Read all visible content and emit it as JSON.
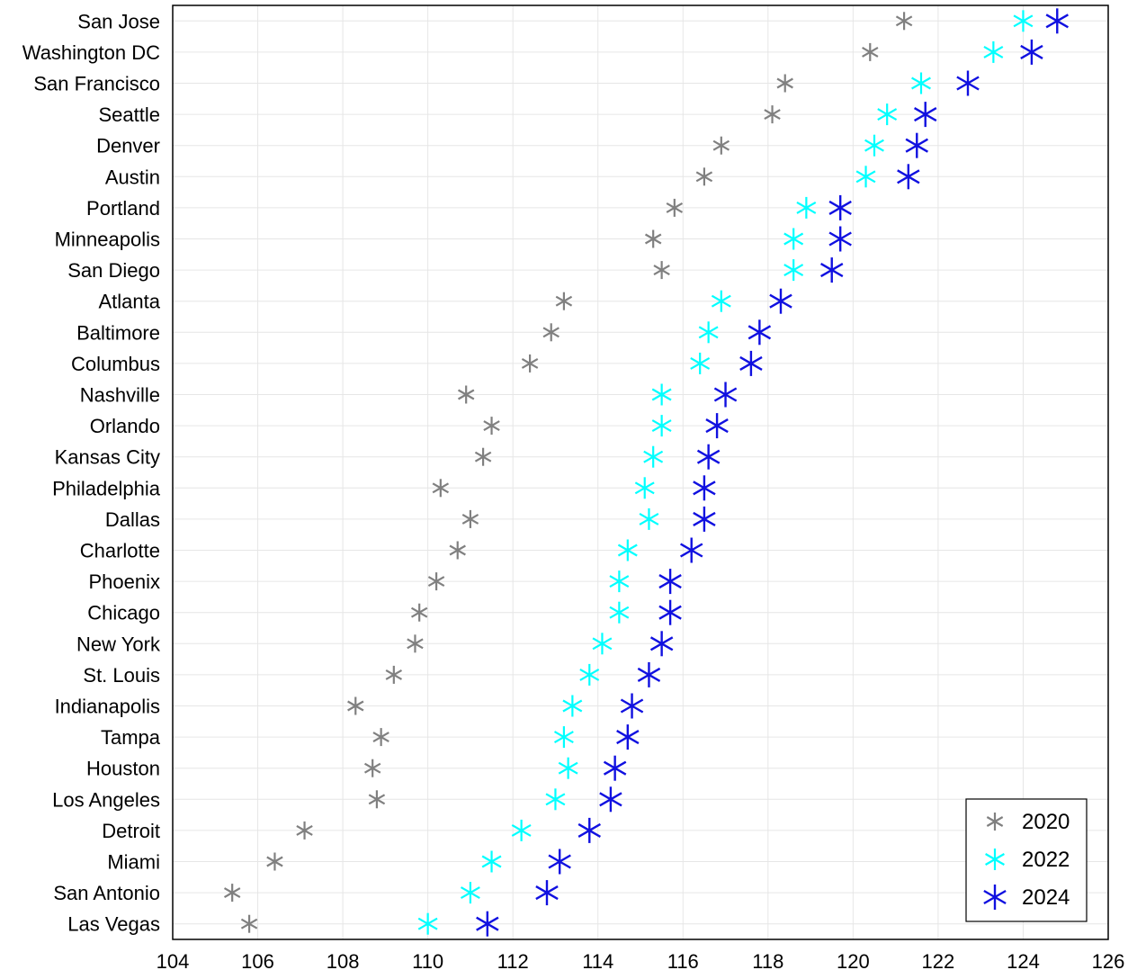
{
  "chart_data": {
    "type": "scatter",
    "title": "",
    "xlabel": "",
    "ylabel": "",
    "xlim": [
      104,
      126
    ],
    "xticks": [
      104,
      106,
      108,
      110,
      112,
      114,
      116,
      118,
      120,
      122,
      124,
      126
    ],
    "grid": true,
    "legend_position": "bottom-right",
    "categories": [
      "San Jose",
      "Washington DC",
      "San Francisco",
      "Seattle",
      "Denver",
      "Austin",
      "Portland",
      "Minneapolis",
      "San Diego",
      "Atlanta",
      "Baltimore",
      "Columbus",
      "Nashville",
      "Orlando",
      "Kansas City",
      "Philadelphia",
      "Dallas",
      "Charlotte",
      "Phoenix",
      "Chicago",
      "New York",
      "St. Louis",
      "Indianapolis",
      "Tampa",
      "Houston",
      "Los Angeles",
      "Detroit",
      "Miami",
      "San Antonio",
      "Las Vegas"
    ],
    "series": [
      {
        "name": "2020",
        "color": "#808080",
        "marker": "asterisk-small",
        "values": [
          121.2,
          120.4,
          118.4,
          118.1,
          116.9,
          116.5,
          115.8,
          115.3,
          115.5,
          113.2,
          112.9,
          112.4,
          110.9,
          111.5,
          111.3,
          110.3,
          111.0,
          110.7,
          110.2,
          109.8,
          109.7,
          109.2,
          108.3,
          108.9,
          108.7,
          108.8,
          107.1,
          106.4,
          105.4,
          105.8
        ]
      },
      {
        "name": "2022",
        "color": "#00ffff",
        "marker": "asterisk-medium",
        "values": [
          124.0,
          123.3,
          121.6,
          120.8,
          120.5,
          120.3,
          118.9,
          118.6,
          118.6,
          116.9,
          116.6,
          116.4,
          115.5,
          115.5,
          115.3,
          115.1,
          115.2,
          114.7,
          114.5,
          114.5,
          114.1,
          113.8,
          113.4,
          113.2,
          113.3,
          113.0,
          112.2,
          111.5,
          111.0,
          110.0
        ]
      },
      {
        "name": "2024",
        "color": "#1010e0",
        "marker": "asterisk-large",
        "values": [
          124.8,
          124.2,
          122.7,
          121.7,
          121.5,
          121.3,
          119.7,
          119.7,
          119.5,
          118.3,
          117.8,
          117.6,
          117.0,
          116.8,
          116.6,
          116.5,
          116.5,
          116.2,
          115.7,
          115.7,
          115.5,
          115.2,
          114.8,
          114.7,
          114.4,
          114.3,
          113.8,
          113.1,
          112.8,
          111.4
        ]
      }
    ]
  }
}
